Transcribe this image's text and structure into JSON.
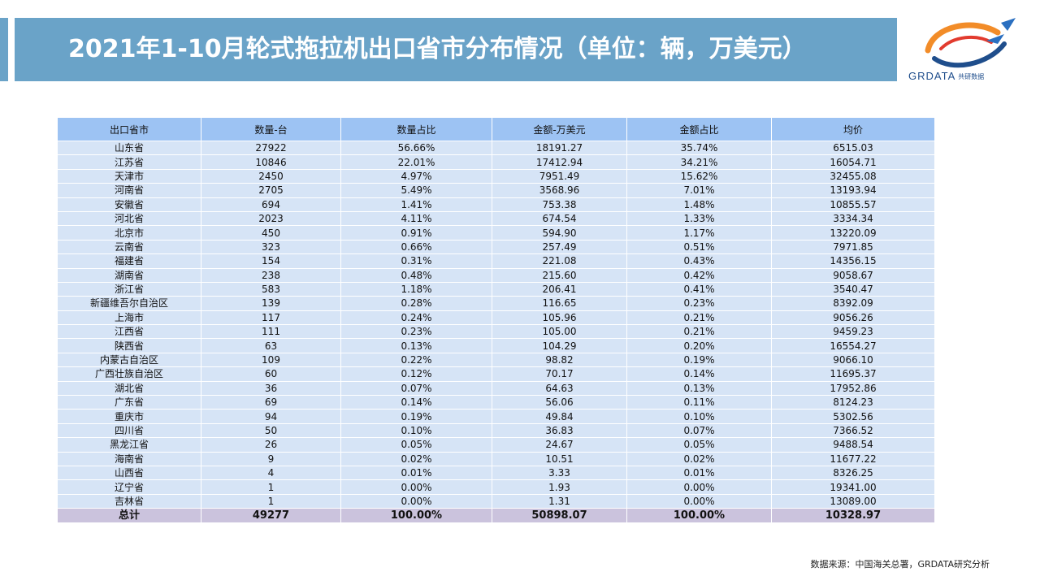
{
  "title": "2021年1-10月轮式拖拉机出口省市分布情况（单位：辆，万美元）",
  "logo": {
    "name": "grdata-logo-icon",
    "text": "GRDATA",
    "cn": "共研数据"
  },
  "table": {
    "headers": [
      "出口省市",
      "数量-台",
      "数量占比",
      "金额-万美元",
      "金额占比",
      "均价"
    ],
    "rows": [
      [
        "山东省",
        "27922",
        "56.66%",
        "18191.27",
        "35.74%",
        "6515.03"
      ],
      [
        "江苏省",
        "10846",
        "22.01%",
        "17412.94",
        "34.21%",
        "16054.71"
      ],
      [
        "天津市",
        "2450",
        "4.97%",
        "7951.49",
        "15.62%",
        "32455.08"
      ],
      [
        "河南省",
        "2705",
        "5.49%",
        "3568.96",
        "7.01%",
        "13193.94"
      ],
      [
        "安徽省",
        "694",
        "1.41%",
        "753.38",
        "1.48%",
        "10855.57"
      ],
      [
        "河北省",
        "2023",
        "4.11%",
        "674.54",
        "1.33%",
        "3334.34"
      ],
      [
        "北京市",
        "450",
        "0.91%",
        "594.90",
        "1.17%",
        "13220.09"
      ],
      [
        "云南省",
        "323",
        "0.66%",
        "257.49",
        "0.51%",
        "7971.85"
      ],
      [
        "福建省",
        "154",
        "0.31%",
        "221.08",
        "0.43%",
        "14356.15"
      ],
      [
        "湖南省",
        "238",
        "0.48%",
        "215.60",
        "0.42%",
        "9058.67"
      ],
      [
        "浙江省",
        "583",
        "1.18%",
        "206.41",
        "0.41%",
        "3540.47"
      ],
      [
        "新疆维吾尔自治区",
        "139",
        "0.28%",
        "116.65",
        "0.23%",
        "8392.09"
      ],
      [
        "上海市",
        "117",
        "0.24%",
        "105.96",
        "0.21%",
        "9056.26"
      ],
      [
        "江西省",
        "111",
        "0.23%",
        "105.00",
        "0.21%",
        "9459.23"
      ],
      [
        "陕西省",
        "63",
        "0.13%",
        "104.29",
        "0.20%",
        "16554.27"
      ],
      [
        "内蒙古自治区",
        "109",
        "0.22%",
        "98.82",
        "0.19%",
        "9066.10"
      ],
      [
        "广西壮族自治区",
        "60",
        "0.12%",
        "70.17",
        "0.14%",
        "11695.37"
      ],
      [
        "湖北省",
        "36",
        "0.07%",
        "64.63",
        "0.13%",
        "17952.86"
      ],
      [
        "广东省",
        "69",
        "0.14%",
        "56.06",
        "0.11%",
        "8124.23"
      ],
      [
        "重庆市",
        "94",
        "0.19%",
        "49.84",
        "0.10%",
        "5302.56"
      ],
      [
        "四川省",
        "50",
        "0.10%",
        "36.83",
        "0.07%",
        "7366.52"
      ],
      [
        "黑龙江省",
        "26",
        "0.05%",
        "24.67",
        "0.05%",
        "9488.54"
      ],
      [
        "海南省",
        "9",
        "0.02%",
        "10.51",
        "0.02%",
        "11677.22"
      ],
      [
        "山西省",
        "4",
        "0.01%",
        "3.33",
        "0.01%",
        "8326.25"
      ],
      [
        "辽宁省",
        "1",
        "0.00%",
        "1.93",
        "0.00%",
        "19341.00"
      ],
      [
        "吉林省",
        "1",
        "0.00%",
        "1.31",
        "0.00%",
        "13089.00"
      ]
    ],
    "total": [
      "总计",
      "49277",
      "100.00%",
      "50898.07",
      "100.00%",
      "10328.97"
    ]
  },
  "source": "数据来源：中国海关总署，GRDATA研究分析",
  "colors": {
    "title_bar": "#6aa3c8",
    "header": "#9dc3f3",
    "row": "#d6e4f6",
    "total": "#cbc3dd"
  }
}
